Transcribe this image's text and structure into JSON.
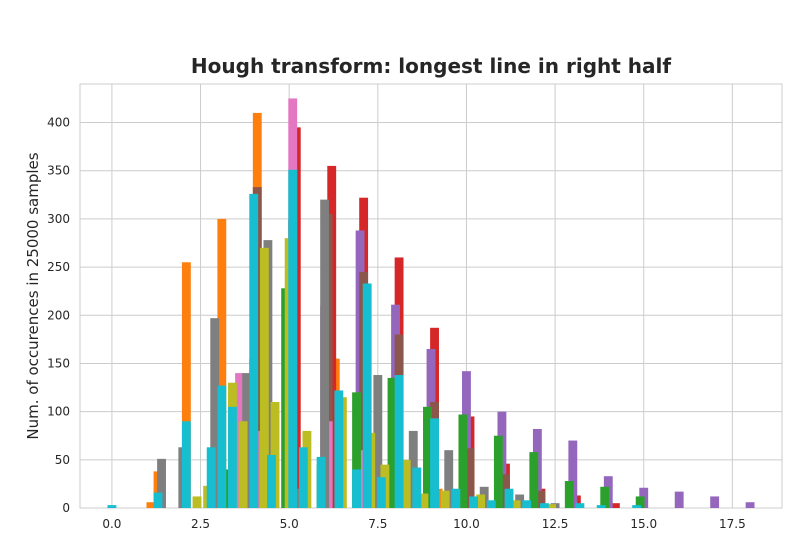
{
  "chart_data": {
    "type": "bar",
    "title": "Hough transform: longest line in right half",
    "xlabel": "",
    "ylabel": "Num. of occurences in 25000 samples",
    "xlim": [
      -0.9,
      18.9
    ],
    "ylim": [
      0,
      440
    ],
    "xticks": [
      0.0,
      2.5,
      5.0,
      7.5,
      10.0,
      12.5,
      15.0,
      17.5
    ],
    "xtick_labels": [
      "0.0",
      "2.5",
      "5.0",
      "7.5",
      "10.0",
      "12.5",
      "15.0",
      "17.5"
    ],
    "yticks": [
      0,
      50,
      100,
      150,
      200,
      250,
      300,
      350,
      400
    ],
    "ytick_labels": [
      "0",
      "50",
      "100",
      "150",
      "200",
      "250",
      "300",
      "350",
      "400"
    ],
    "grid": true,
    "bar_width": 0.25,
    "series": [
      {
        "color": "#ff7f0e",
        "values": [
          [
            1.1,
            6
          ],
          [
            1.3,
            38
          ],
          [
            2.1,
            255
          ],
          [
            3.1,
            300
          ],
          [
            4.1,
            410
          ],
          [
            5.1,
            298
          ],
          [
            6.3,
            155
          ],
          [
            7.4,
            50
          ],
          [
            8.2,
            28
          ],
          [
            9.2,
            20
          ],
          [
            10.3,
            8
          ]
        ]
      },
      {
        "color": "#d62728",
        "values": [
          [
            5.2,
            395
          ],
          [
            6.2,
            355
          ],
          [
            7.1,
            322
          ],
          [
            8.1,
            260
          ],
          [
            9.1,
            187
          ],
          [
            10.1,
            95
          ],
          [
            11.1,
            46
          ],
          [
            12.1,
            20
          ],
          [
            13.1,
            13
          ],
          [
            14.2,
            5
          ]
        ]
      },
      {
        "color": "#9467bd",
        "values": [
          [
            6.0,
            210
          ],
          [
            7.0,
            288
          ],
          [
            8.0,
            211
          ],
          [
            9.0,
            165
          ],
          [
            10.0,
            142
          ],
          [
            11.0,
            100
          ],
          [
            12.0,
            82
          ],
          [
            13.0,
            70
          ],
          [
            14.0,
            33
          ],
          [
            15.0,
            21
          ],
          [
            16.0,
            17
          ],
          [
            17.0,
            12
          ],
          [
            18.0,
            6
          ]
        ]
      },
      {
        "color": "#8c564b",
        "values": [
          [
            4.1,
            333
          ],
          [
            5.1,
            300
          ],
          [
            6.1,
            305
          ],
          [
            7.1,
            245
          ],
          [
            8.1,
            180
          ],
          [
            9.1,
            110
          ],
          [
            10.1,
            62
          ],
          [
            11.1,
            35
          ],
          [
            12.1,
            18
          ]
        ]
      },
      {
        "color": "#e377c2",
        "values": [
          [
            3.6,
            140
          ],
          [
            4.2,
            80
          ],
          [
            5.1,
            425
          ],
          [
            6.1,
            90
          ],
          [
            7.1,
            60
          ],
          [
            8.1,
            40
          ]
        ]
      },
      {
        "color": "#7f7f7f",
        "values": [
          [
            1.4,
            51
          ],
          [
            2.0,
            63
          ],
          [
            2.9,
            197
          ],
          [
            3.8,
            140
          ],
          [
            4.4,
            278
          ],
          [
            5.2,
            20
          ],
          [
            6.0,
            320
          ],
          [
            7.5,
            138
          ],
          [
            8.5,
            80
          ],
          [
            9.5,
            60
          ],
          [
            10.5,
            22
          ],
          [
            11.5,
            14
          ],
          [
            12.5,
            5
          ]
        ]
      },
      {
        "color": "#2ca02c",
        "values": [
          [
            3.3,
            40
          ],
          [
            4.0,
            155
          ],
          [
            4.9,
            228
          ],
          [
            5.9,
            45
          ],
          [
            6.9,
            120
          ],
          [
            7.9,
            135
          ],
          [
            8.9,
            105
          ],
          [
            9.9,
            97
          ],
          [
            10.9,
            75
          ],
          [
            11.9,
            58
          ],
          [
            12.9,
            28
          ],
          [
            13.9,
            22
          ],
          [
            14.9,
            12
          ]
        ]
      },
      {
        "color": "#bcbd22",
        "values": [
          [
            2.4,
            12
          ],
          [
            2.7,
            23
          ],
          [
            3.4,
            130
          ],
          [
            3.7,
            90
          ],
          [
            4.3,
            270
          ],
          [
            4.6,
            110
          ],
          [
            5.0,
            280
          ],
          [
            5.5,
            80
          ],
          [
            6.5,
            115
          ],
          [
            7.3,
            78
          ],
          [
            7.7,
            45
          ],
          [
            8.3,
            50
          ],
          [
            8.8,
            15
          ],
          [
            9.4,
            18
          ],
          [
            10.4,
            14
          ],
          [
            11.4,
            8
          ],
          [
            12.4,
            4
          ]
        ]
      },
      {
        "color": "#17becf",
        "values": [
          [
            0.0,
            3
          ],
          [
            1.3,
            16
          ],
          [
            2.1,
            90
          ],
          [
            2.8,
            63
          ],
          [
            3.1,
            127
          ],
          [
            3.4,
            105
          ],
          [
            4.0,
            326
          ],
          [
            4.5,
            55
          ],
          [
            5.1,
            351
          ],
          [
            5.4,
            63
          ],
          [
            5.9,
            53
          ],
          [
            6.4,
            122
          ],
          [
            6.9,
            40
          ],
          [
            7.2,
            233
          ],
          [
            7.6,
            32
          ],
          [
            8.1,
            138
          ],
          [
            8.6,
            42
          ],
          [
            9.1,
            93
          ],
          [
            9.7,
            20
          ],
          [
            10.2,
            12
          ],
          [
            10.7,
            8
          ],
          [
            11.2,
            20
          ],
          [
            11.7,
            8
          ],
          [
            12.2,
            5
          ],
          [
            13.2,
            5
          ],
          [
            13.8,
            3
          ],
          [
            14.8,
            3
          ]
        ]
      }
    ]
  }
}
